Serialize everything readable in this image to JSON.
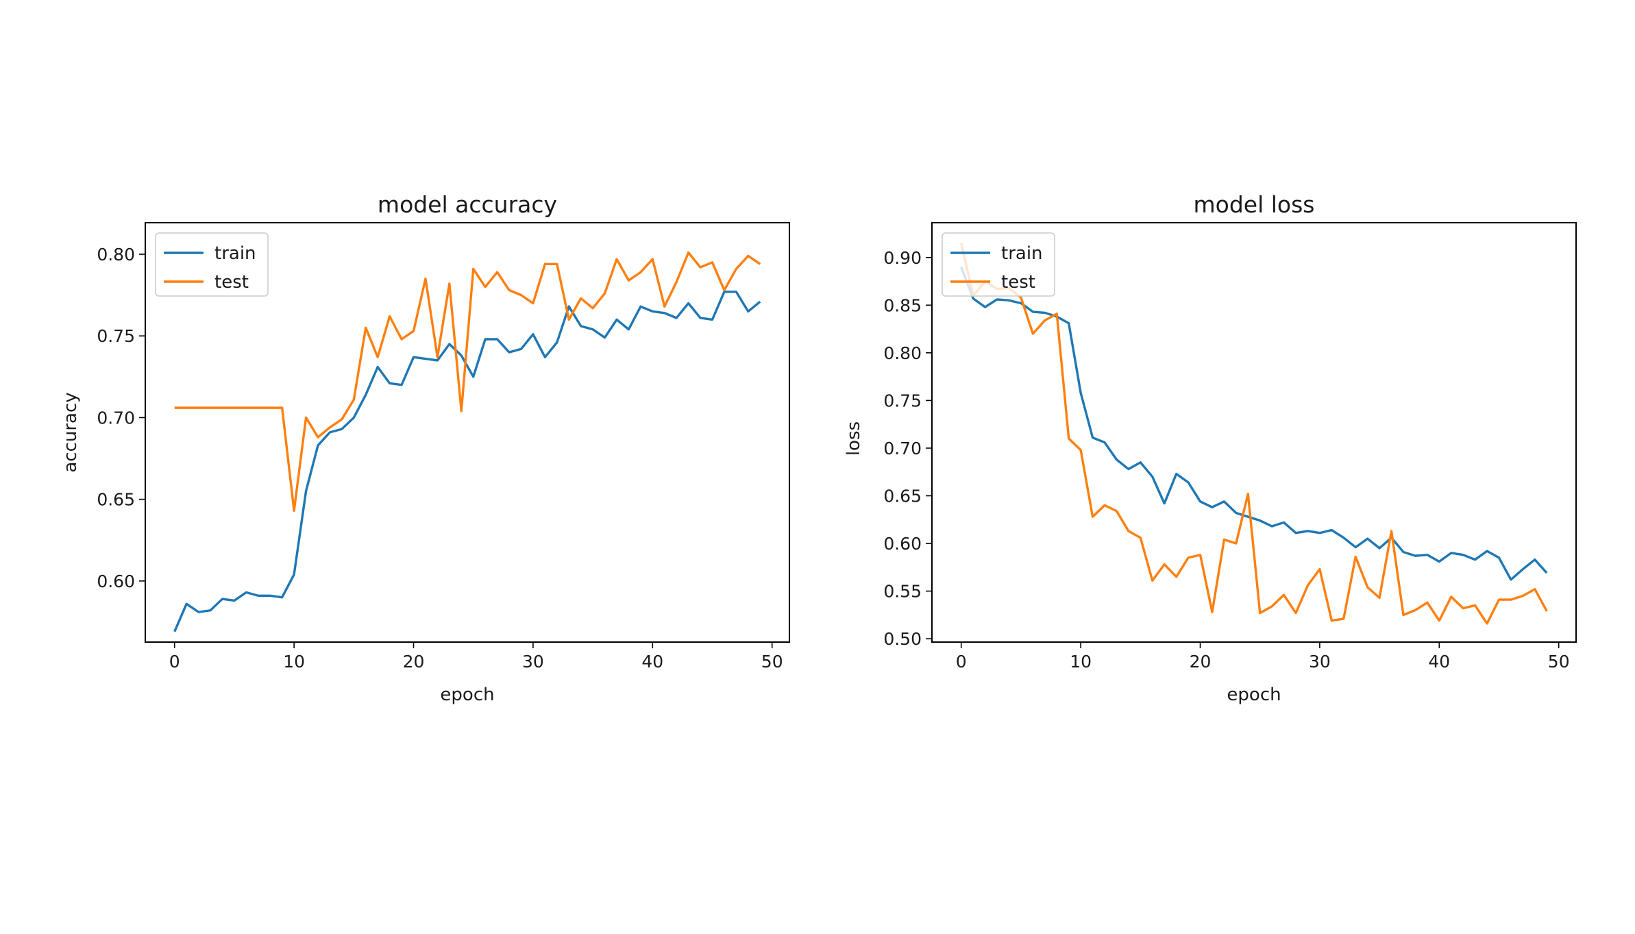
{
  "chart_data": [
    {
      "id": "accuracy",
      "type": "line",
      "title": "model accuracy",
      "xlabel": "epoch",
      "ylabel": "accuracy",
      "xlim": [
        -2.45,
        51.45
      ],
      "ylim": [
        0.5626,
        0.8193
      ],
      "xticks": [
        0,
        10,
        20,
        30,
        40,
        50
      ],
      "yticks": [
        0.6,
        0.65,
        0.7,
        0.75,
        0.8
      ],
      "ytick_labels": [
        "0.60",
        "0.65",
        "0.70",
        "0.75",
        "0.80"
      ],
      "grid": false,
      "legend": {
        "placement": "top-left",
        "entries": [
          "train",
          "test"
        ]
      },
      "x": [
        0,
        1,
        2,
        3,
        4,
        5,
        6,
        7,
        8,
        9,
        10,
        11,
        12,
        13,
        14,
        15,
        16,
        17,
        18,
        19,
        20,
        21,
        22,
        23,
        24,
        25,
        26,
        27,
        28,
        29,
        30,
        31,
        32,
        33,
        34,
        35,
        36,
        37,
        38,
        39,
        40,
        41,
        42,
        43,
        44,
        45,
        46,
        47,
        48,
        49
      ],
      "series": [
        {
          "name": "train",
          "color": "#1f77b4",
          "values": [
            0.569,
            0.586,
            0.581,
            0.582,
            0.589,
            0.588,
            0.593,
            0.591,
            0.591,
            0.59,
            0.604,
            0.655,
            0.683,
            0.691,
            0.693,
            0.7,
            0.714,
            0.731,
            0.721,
            0.72,
            0.737,
            0.736,
            0.735,
            0.745,
            0.738,
            0.725,
            0.748,
            0.748,
            0.74,
            0.742,
            0.751,
            0.737,
            0.746,
            0.768,
            0.756,
            0.754,
            0.749,
            0.76,
            0.754,
            0.768,
            0.765,
            0.764,
            0.761,
            0.77,
            0.761,
            0.76,
            0.777,
            0.777,
            0.765,
            0.771
          ]
        },
        {
          "name": "test",
          "color": "#ff7f0e",
          "values": [
            0.706,
            0.706,
            0.706,
            0.706,
            0.706,
            0.706,
            0.706,
            0.706,
            0.706,
            0.706,
            0.643,
            0.7,
            0.688,
            0.694,
            0.699,
            0.711,
            0.755,
            0.737,
            0.762,
            0.748,
            0.753,
            0.785,
            0.737,
            0.782,
            0.704,
            0.791,
            0.78,
            0.789,
            0.778,
            0.775,
            0.77,
            0.794,
            0.794,
            0.76,
            0.773,
            0.767,
            0.776,
            0.797,
            0.784,
            0.789,
            0.797,
            0.768,
            0.783,
            0.801,
            0.792,
            0.795,
            0.778,
            0.791,
            0.799,
            0.794
          ]
        }
      ]
    },
    {
      "id": "loss",
      "type": "line",
      "title": "model loss",
      "xlabel": "epoch",
      "ylabel": "loss",
      "xlim": [
        -2.45,
        51.45
      ],
      "ylim": [
        0.4965,
        0.9365
      ],
      "xticks": [
        0,
        10,
        20,
        30,
        40,
        50
      ],
      "yticks": [
        0.5,
        0.55,
        0.6,
        0.65,
        0.7,
        0.75,
        0.8,
        0.85,
        0.9
      ],
      "ytick_labels": [
        "0.50",
        "0.55",
        "0.60",
        "0.65",
        "0.70",
        "0.75",
        "0.80",
        "0.85",
        "0.90"
      ],
      "grid": false,
      "legend": {
        "placement": "top-left",
        "entries": [
          "train",
          "test"
        ]
      },
      "x": [
        0,
        1,
        2,
        3,
        4,
        5,
        6,
        7,
        8,
        9,
        10,
        11,
        12,
        13,
        14,
        15,
        16,
        17,
        18,
        19,
        20,
        21,
        22,
        23,
        24,
        25,
        26,
        27,
        28,
        29,
        30,
        31,
        32,
        33,
        34,
        35,
        36,
        37,
        38,
        39,
        40,
        41,
        42,
        43,
        44,
        45,
        46,
        47,
        48,
        49
      ],
      "series": [
        {
          "name": "train",
          "color": "#1f77b4",
          "values": [
            0.89,
            0.857,
            0.848,
            0.856,
            0.855,
            0.852,
            0.843,
            0.842,
            0.838,
            0.831,
            0.758,
            0.711,
            0.706,
            0.688,
            0.678,
            0.685,
            0.67,
            0.642,
            0.673,
            0.664,
            0.644,
            0.638,
            0.644,
            0.632,
            0.628,
            0.624,
            0.618,
            0.622,
            0.611,
            0.613,
            0.611,
            0.614,
            0.606,
            0.596,
            0.605,
            0.595,
            0.606,
            0.591,
            0.587,
            0.588,
            0.581,
            0.59,
            0.588,
            0.583,
            0.592,
            0.585,
            0.562,
            0.573,
            0.583,
            0.569
          ]
        },
        {
          "name": "test",
          "color": "#ff7f0e",
          "values": [
            0.915,
            0.86,
            0.875,
            0.867,
            0.868,
            0.858,
            0.82,
            0.834,
            0.841,
            0.71,
            0.698,
            0.628,
            0.64,
            0.634,
            0.613,
            0.606,
            0.561,
            0.578,
            0.565,
            0.585,
            0.588,
            0.528,
            0.604,
            0.6,
            0.652,
            0.527,
            0.534,
            0.546,
            0.527,
            0.556,
            0.573,
            0.519,
            0.521,
            0.586,
            0.554,
            0.543,
            0.613,
            0.525,
            0.53,
            0.538,
            0.519,
            0.544,
            0.532,
            0.535,
            0.516,
            0.541,
            0.541,
            0.545,
            0.552,
            0.529
          ]
        }
      ]
    }
  ]
}
